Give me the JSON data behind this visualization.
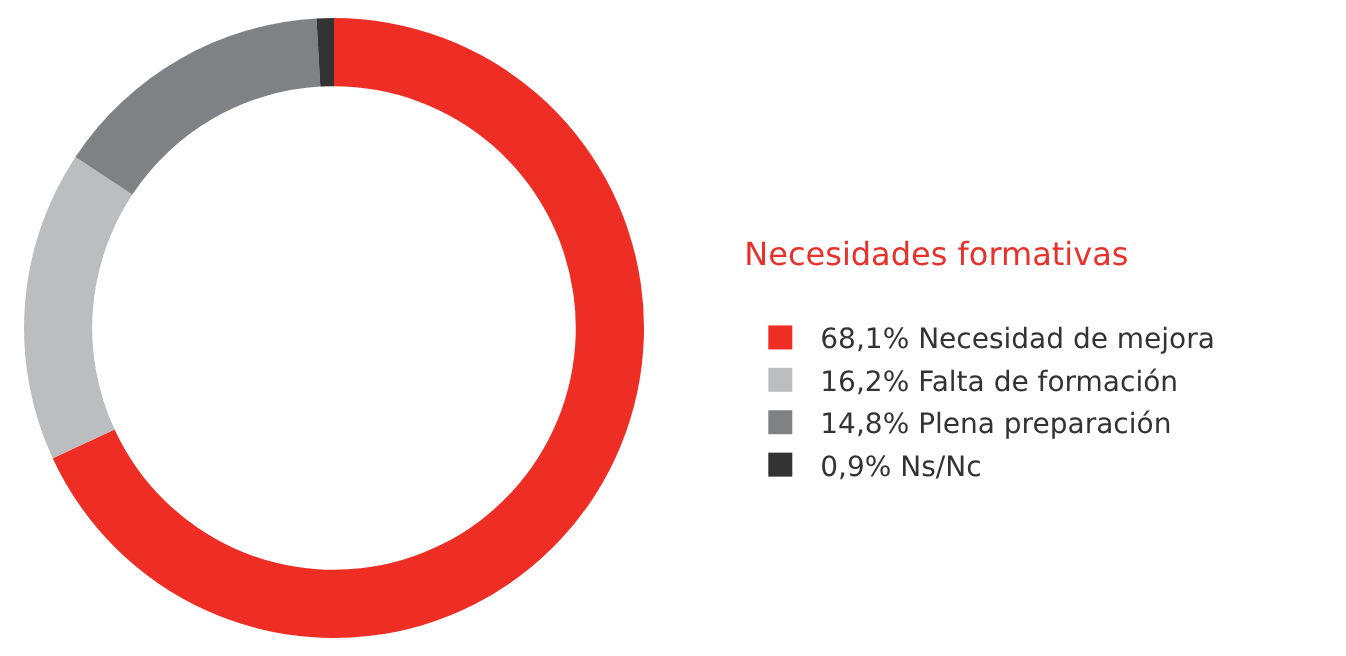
{
  "chart_data": {
    "type": "donut",
    "legend_title": "Necesidades formativas",
    "legend": "right",
    "categories": [
      "68,1% Necesidad de mejora",
      "16,2% Falta de formación",
      "14,8% Plena preparación",
      "0,9% Ns/Nc"
    ],
    "values": [
      68.1,
      16.2,
      14.8,
      0.9
    ],
    "colors": [
      "#ee2e24",
      "#bcbdc0",
      "#808184",
      "#333333"
    ]
  }
}
